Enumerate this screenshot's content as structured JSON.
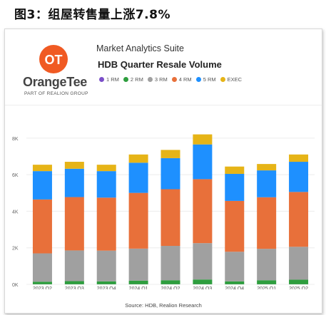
{
  "figure_title": "图3：组屋转售量上涨7.8%",
  "logo": {
    "mark_text": "OT",
    "brand_name": "OrangeTee",
    "brand_subtitle": "PART OF REALION GROUP"
  },
  "header": {
    "suite": "Market Analytics Suite",
    "title": "HDB Quarter Resale Volume"
  },
  "source": "Source: HDB, Realion Research",
  "chart_data": {
    "type": "bar",
    "stacked": true,
    "title": "HDB Quarter Resale Volume",
    "categories": [
      "2023 Q2",
      "2023 Q3",
      "2023 Q4",
      "2024 Q1",
      "2024 Q2",
      "2024 Q3",
      "2024 Q4",
      "2025 Q1",
      "2025 Q2"
    ],
    "yticks": [
      "0K",
      "2K",
      "4K",
      "6K",
      "8K"
    ],
    "ylim": [
      0,
      8500
    ],
    "grid": true,
    "legend_position": "top",
    "series": [
      {
        "name": "1 RM",
        "color": "#7b4fc9",
        "values": [
          5,
          5,
          5,
          5,
          5,
          5,
          5,
          5,
          5
        ]
      },
      {
        "name": "2 RM",
        "color": "#2e9e3e",
        "values": [
          140,
          170,
          160,
          200,
          220,
          260,
          160,
          220,
          250
        ]
      },
      {
        "name": "3 RM",
        "color": "#a0a0a0",
        "values": [
          1550,
          1680,
          1680,
          1750,
          1880,
          1990,
          1620,
          1720,
          1800
        ]
      },
      {
        "name": "4 RM",
        "color": "#e8703a",
        "values": [
          2950,
          2920,
          2900,
          3050,
          3100,
          3500,
          2780,
          2820,
          3000
        ]
      },
      {
        "name": "5 RM",
        "color": "#1e90ff",
        "values": [
          1550,
          1550,
          1450,
          1650,
          1700,
          1900,
          1480,
          1470,
          1650
        ]
      },
      {
        "name": "EXEC",
        "color": "#e6b417",
        "values": [
          350,
          380,
          350,
          450,
          450,
          550,
          400,
          350,
          400
        ]
      }
    ]
  }
}
